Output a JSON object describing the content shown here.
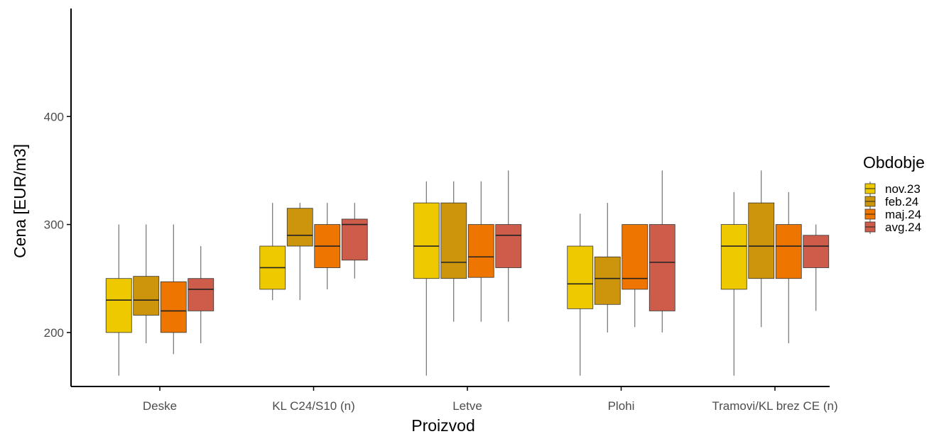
{
  "chart_data": {
    "type": "boxplot",
    "xlabel": "Proizvod",
    "ylabel": "Cena [EUR/m3]",
    "ylim": [
      150,
      500
    ],
    "yticks": [
      200,
      300,
      400
    ],
    "grid": false,
    "legend": {
      "title": "Obdobje",
      "placement": "right"
    },
    "categories": [
      "Deske",
      "KL C24/S10 (n)",
      "Letve",
      "Plohi",
      "Tramovi/KL brez CE (n)"
    ],
    "series": [
      {
        "name": "nov.23",
        "color": "#EEC900",
        "boxes": [
          {
            "min": 160,
            "q1": 200,
            "median": 230,
            "q3": 250,
            "max": 300
          },
          {
            "min": 230,
            "q1": 240,
            "median": 260,
            "q3": 280,
            "max": 320
          },
          {
            "min": 160,
            "q1": 250,
            "median": 280,
            "q3": 320,
            "max": 340
          },
          {
            "min": 160,
            "q1": 222,
            "median": 245,
            "q3": 280,
            "max": 310
          },
          {
            "min": 160,
            "q1": 240,
            "median": 280,
            "q3": 300,
            "max": 330
          }
        ]
      },
      {
        "name": "feb.24",
        "color": "#CD950C",
        "boxes": [
          {
            "min": 190,
            "q1": 216,
            "median": 230,
            "q3": 252,
            "max": 300
          },
          {
            "min": 230,
            "q1": 280,
            "median": 290,
            "q3": 315,
            "max": 320
          },
          {
            "min": 210,
            "q1": 250,
            "median": 265,
            "q3": 320,
            "max": 340
          },
          {
            "min": 200,
            "q1": 226,
            "median": 250,
            "q3": 270,
            "max": 320
          },
          {
            "min": 205,
            "q1": 250,
            "median": 280,
            "q3": 320,
            "max": 350
          }
        ]
      },
      {
        "name": "maj.24",
        "color": "#EE7600",
        "boxes": [
          {
            "min": 180,
            "q1": 200,
            "median": 220,
            "q3": 247,
            "max": 300
          },
          {
            "min": 240,
            "q1": 260,
            "median": 280,
            "q3": 300,
            "max": 320
          },
          {
            "min": 210,
            "q1": 251,
            "median": 270,
            "q3": 300,
            "max": 340
          },
          {
            "min": 205,
            "q1": 240,
            "median": 250,
            "q3": 300,
            "max": 300
          },
          {
            "min": 190,
            "q1": 250,
            "median": 280,
            "q3": 300,
            "max": 330
          }
        ]
      },
      {
        "name": "avg.24",
        "color": "#CD5C4B",
        "boxes": [
          {
            "min": 190,
            "q1": 220,
            "median": 240,
            "q3": 250,
            "max": 280
          },
          {
            "min": 250,
            "q1": 267,
            "median": 300,
            "q3": 305,
            "max": 320
          },
          {
            "min": 210,
            "q1": 260,
            "median": 290,
            "q3": 300,
            "max": 350
          },
          {
            "min": 200,
            "q1": 220,
            "median": 265,
            "q3": 300,
            "max": 350
          },
          {
            "min": 220,
            "q1": 260,
            "median": 280,
            "q3": 290,
            "max": 300
          }
        ]
      }
    ]
  }
}
